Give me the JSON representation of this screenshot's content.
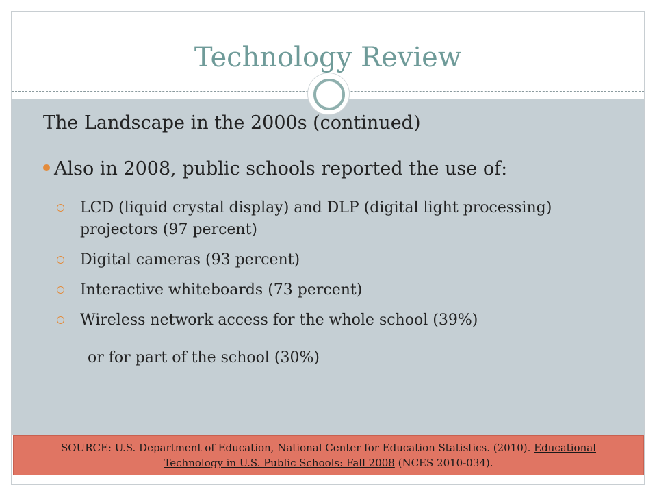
{
  "slide": {
    "title": "Technology Review",
    "subtitle": "The Landscape in the 2000s (continued)",
    "main_bullet": "Also in 2008, public schools reported the use of:",
    "sub_bullets": [
      "LCD (liquid crystal display) and DLP (digital light processing) projectors (97 percent)",
      "Digital cameras (93 percent)",
      "Interactive whiteboards (73 percent)",
      "Wireless network access for the whole school (39%)"
    ],
    "continuation": "or for part of the school (30%)"
  },
  "source": {
    "prefix": "SOURCE: U.S. Department of Education, National Center for Education Statistics. (2010). ",
    "title_part1": "Educational",
    "title_part2": "Technology in U.S. Public Schools: Fall 2008",
    "suffix": " (NCES 2010-034)."
  },
  "colors": {
    "title": "#6f9b99",
    "content_bg": "#c5cfd4",
    "bullet_accent": "#e38b3b",
    "source_bg": "#e07563"
  }
}
